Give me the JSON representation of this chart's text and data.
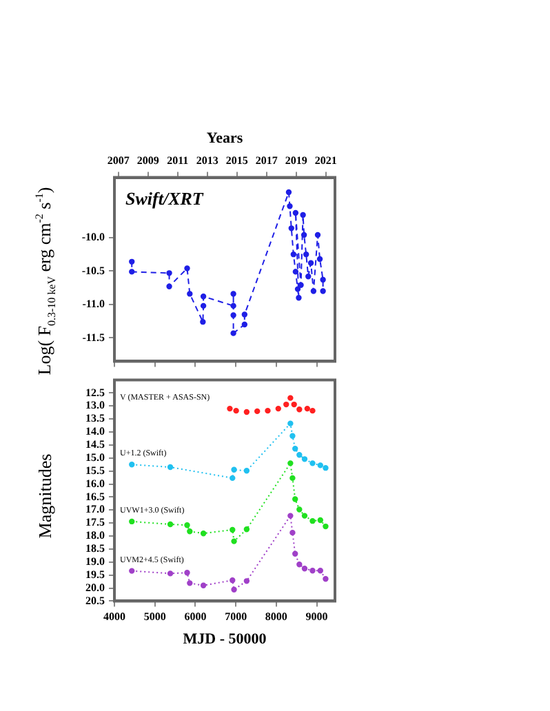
{
  "chart_data": [
    {
      "type": "line",
      "ylabel": "Log( F$_{0.3-10 keV}$ erg cm$^{-2}$ s$^{-1}$)",
      "x2label": "Years",
      "annotations": [
        "Swift/XRT"
      ],
      "xlim": [
        4000,
        9450
      ],
      "xticks": [
        4000,
        5000,
        6000,
        7000,
        8000,
        9000
      ],
      "x2lim": [
        2006.73,
        2021.62
      ],
      "x2ticks": [
        2007,
        2009,
        2011,
        2013,
        2015,
        2017,
        2019,
        2021
      ],
      "ylim": [
        -11.85,
        -9.1
      ],
      "yticks": [
        {
          "value": -10.0,
          "label": "-10.0"
        },
        {
          "value": -10.5,
          "label": "-10.5"
        },
        {
          "value": -11.0,
          "label": "-11.0"
        },
        {
          "value": -11.5,
          "label": "-11.5"
        }
      ],
      "tick_labels": "y",
      "grid": false,
      "legend": false,
      "marker": "circle",
      "series": [
        {
          "color": "#1f1fe6",
          "line_style": "dashed",
          "x": [
            4430,
            4430,
            5355,
            5355,
            5797,
            5862,
            6186,
            6199,
            6199,
            6940,
            6940,
            6940,
            6940,
            7216,
            7216,
            8308,
            8334,
            8373,
            8425,
            8477,
            8530,
            8555,
            8477,
            8608,
            8660,
            8686,
            8738,
            8790,
            8855,
            8920,
            9024,
            9076,
            9154,
            9154
          ],
          "values": [
            -10.36,
            -10.51,
            -10.53,
            -10.73,
            -10.46,
            -10.84,
            -11.26,
            -11.02,
            -10.88,
            -11.02,
            -10.84,
            -11.16,
            -11.43,
            -11.3,
            -11.15,
            -9.32,
            -9.53,
            -9.86,
            -10.25,
            -10.51,
            -10.77,
            -10.9,
            -9.63,
            -10.71,
            -9.66,
            -9.96,
            -10.25,
            -10.58,
            -10.38,
            -10.8,
            -9.96,
            -10.32,
            -10.63,
            -10.8
          ]
        }
      ]
    },
    {
      "type": "line",
      "xlabel": "MJD - 50000",
      "ylabel": "Magnitudes",
      "xlim": [
        4000,
        9450
      ],
      "xticks": [
        4000,
        5000,
        6000,
        7000,
        8000,
        9000
      ],
      "ylim": [
        20.5,
        12.0
      ],
      "yticks": [
        {
          "value": 12.5,
          "label": "12.5"
        },
        {
          "value": 13,
          "label": "13.0"
        },
        {
          "value": 13.5,
          "label": "13.5"
        },
        {
          "value": 14,
          "label": "14.0"
        },
        {
          "value": 14.5,
          "label": "14.5"
        },
        {
          "value": 15,
          "label": "15.0"
        },
        {
          "value": 15.5,
          "label": "15.5"
        },
        {
          "value": 16,
          "label": "16.0"
        },
        {
          "value": 16.5,
          "label": "16.5"
        },
        {
          "value": 17,
          "label": "17.0"
        },
        {
          "value": 17.5,
          "label": "17.5"
        },
        {
          "value": 18,
          "label": "18.0"
        },
        {
          "value": 18.5,
          "label": "18.5"
        },
        {
          "value": 19,
          "label": "19.0"
        },
        {
          "value": 19.5,
          "label": "19.5"
        },
        {
          "value": 20,
          "label": "20.0"
        },
        {
          "value": 20.5,
          "label": "20.5"
        }
      ],
      "grid": false,
      "legend": false,
      "marker": "circle",
      "series": [
        {
          "name": "V (MASTER + ASAS-SN)",
          "type": "scatter",
          "color": "#ff2020",
          "x": [
            6852,
            7008,
            7268,
            7529,
            7789,
            8050,
            8245,
            8349,
            8440,
            8570,
            8766,
            8896
          ],
          "values": [
            13.1,
            13.18,
            13.23,
            13.2,
            13.18,
            13.1,
            12.94,
            12.69,
            12.94,
            13.13,
            13.1,
            13.18
          ]
        },
        {
          "name": "U+1.2 (Swift)",
          "color": "#20c0f0",
          "line_style": "dotted",
          "x": [
            4430,
            5381,
            6917,
            6956,
            7268,
            8349,
            8401,
            8466,
            8570,
            8700,
            8896,
            9089,
            9219
          ],
          "values": [
            15.25,
            15.35,
            15.77,
            15.45,
            15.49,
            13.67,
            14.15,
            14.64,
            14.88,
            15.04,
            15.2,
            15.28,
            15.38
          ]
        },
        {
          "name": "UVW1+3.0 (Swift)",
          "color": "#20e020",
          "line_style": "dotted",
          "x": [
            4430,
            5381,
            5797,
            5862,
            6199,
            6917,
            6956,
            7268,
            8349,
            8401,
            8466,
            8570,
            8700,
            8896,
            9089,
            9219
          ],
          "values": [
            17.44,
            17.55,
            17.58,
            17.82,
            17.9,
            17.76,
            18.2,
            17.74,
            15.2,
            15.77,
            16.58,
            16.98,
            17.22,
            17.42,
            17.39,
            17.63
          ]
        },
        {
          "name": "UVM2+4.5 (Swift)",
          "color": "#a040c8",
          "line_style": "dotted",
          "x": [
            4430,
            5381,
            5797,
            5862,
            6199,
            6917,
            6956,
            7268,
            8349,
            8401,
            8466,
            8570,
            8700,
            8896,
            9089,
            9219
          ],
          "values": [
            19.34,
            19.44,
            19.41,
            19.81,
            19.9,
            19.7,
            20.06,
            19.73,
            17.22,
            17.87,
            18.68,
            19.09,
            19.25,
            19.33,
            19.33,
            19.65
          ]
        }
      ]
    }
  ]
}
